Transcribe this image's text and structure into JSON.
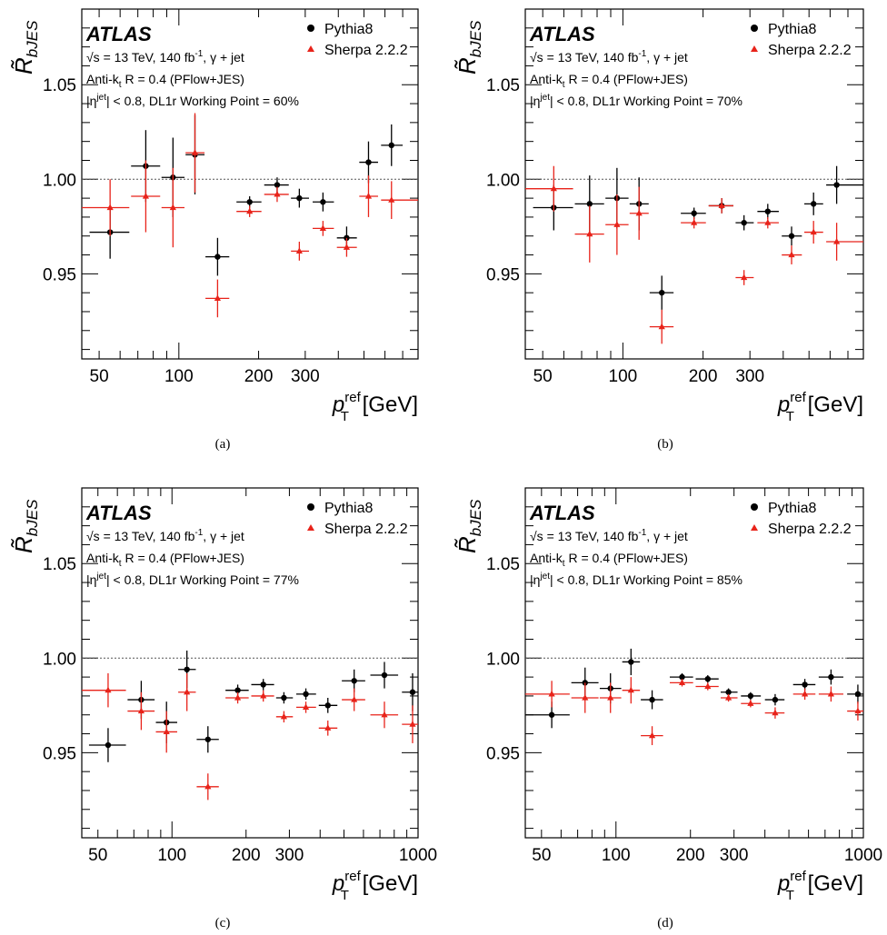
{
  "common": {
    "atlas_label": "ATLAS",
    "ann_sqrt": "√s = 13 TeV, 140 fb",
    "ann_sqrt_sup": "-1",
    "ann_sqrt_tail": ", γ + jet",
    "ann_jet_main": "Anti-k",
    "ann_jet_sub": "t",
    "ann_jet_tail": " R = 0.4 (PFlow+JES)",
    "ann_eta_pre": "|η",
    "ann_eta_sup": "jet",
    "ann_eta_tail_prefix": "| < 0.8, DL1r Working Point = ",
    "ylabel_main": "R̃",
    "ylabel_sub": "bJES",
    "xlabel_main": "p",
    "xlabel_sup": "ref",
    "xlabel_sub": "T",
    "xlabel_unit": " [GeV]",
    "legend": [
      "Pythia8",
      "Sherpa 2.2.2"
    ]
  },
  "colors": {
    "pythia": "#000000",
    "sherpa": "#e8231a",
    "reference_line": "#555555"
  },
  "chart_data": [
    {
      "type": "scatter",
      "caption": "(a)",
      "working_point": "60%",
      "x_scale": "log",
      "xlim": [
        43,
        800
      ],
      "ylim": [
        0.905,
        1.09
      ],
      "x_ticks": [
        50,
        100,
        200,
        300
      ],
      "y_ticks": [
        0.95,
        1.0,
        1.05
      ],
      "y_tick_labels": [
        "0.95",
        "1.00",
        "1.05"
      ],
      "reference_line": 1.0,
      "series": [
        {
          "name": "Pythia8",
          "points": [
            {
              "x": 55,
              "xlo": 46,
              "xhi": 65,
              "y": 0.972,
              "err": 0.014
            },
            {
              "x": 75,
              "xlo": 66,
              "xhi": 85,
              "y": 1.007,
              "err": 0.019
            },
            {
              "x": 95,
              "xlo": 86,
              "xhi": 105,
              "y": 1.001,
              "err": 0.021
            },
            {
              "x": 115,
              "xlo": 106,
              "xhi": 125,
              "y": 1.013,
              "err": 0.021
            },
            {
              "x": 140,
              "xlo": 126,
              "xhi": 155,
              "y": 0.959,
              "err": 0.01
            },
            {
              "x": 185,
              "xlo": 165,
              "xhi": 205,
              "y": 0.988,
              "err": 0.003
            },
            {
              "x": 235,
              "xlo": 210,
              "xhi": 260,
              "y": 0.997,
              "err": 0.004
            },
            {
              "x": 285,
              "xlo": 265,
              "xhi": 310,
              "y": 0.99,
              "err": 0.005
            },
            {
              "x": 350,
              "xlo": 320,
              "xhi": 385,
              "y": 0.988,
              "err": 0.005
            },
            {
              "x": 430,
              "xlo": 395,
              "xhi": 470,
              "y": 0.969,
              "err": 0.006
            },
            {
              "x": 520,
              "xlo": 480,
              "xhi": 565,
              "y": 1.009,
              "err": 0.011
            },
            {
              "x": 635,
              "xlo": 580,
              "xhi": 700,
              "y": 1.018,
              "err": 0.011
            }
          ]
        },
        {
          "name": "Sherpa 2.2.2",
          "points": [
            {
              "x": 55,
              "xlo": 43,
              "xhi": 65,
              "y": 0.985,
              "err": 0.015
            },
            {
              "x": 75,
              "xlo": 66,
              "xhi": 85,
              "y": 0.991,
              "err": 0.019
            },
            {
              "x": 95,
              "xlo": 86,
              "xhi": 105,
              "y": 0.985,
              "err": 0.021
            },
            {
              "x": 115,
              "xlo": 106,
              "xhi": 125,
              "y": 1.014,
              "err": 0.021
            },
            {
              "x": 140,
              "xlo": 126,
              "xhi": 155,
              "y": 0.937,
              "err": 0.01
            },
            {
              "x": 185,
              "xlo": 165,
              "xhi": 205,
              "y": 0.983,
              "err": 0.003
            },
            {
              "x": 235,
              "xlo": 210,
              "xhi": 260,
              "y": 0.992,
              "err": 0.004
            },
            {
              "x": 285,
              "xlo": 265,
              "xhi": 310,
              "y": 0.962,
              "err": 0.005
            },
            {
              "x": 350,
              "xlo": 320,
              "xhi": 385,
              "y": 0.974,
              "err": 0.004
            },
            {
              "x": 430,
              "xlo": 395,
              "xhi": 470,
              "y": 0.964,
              "err": 0.005
            },
            {
              "x": 520,
              "xlo": 480,
              "xhi": 565,
              "y": 0.991,
              "err": 0.011
            },
            {
              "x": 635,
              "xlo": 580,
              "xhi": 800,
              "y": 0.989,
              "err": 0.01
            }
          ]
        }
      ]
    },
    {
      "type": "scatter",
      "caption": "(b)",
      "working_point": "70%",
      "x_scale": "log",
      "xlim": [
        43,
        800
      ],
      "ylim": [
        0.905,
        1.09
      ],
      "x_ticks": [
        50,
        100,
        200,
        300
      ],
      "y_ticks": [
        0.95,
        1.0,
        1.05
      ],
      "y_tick_labels": [
        "0.95",
        "1.00",
        "1.05"
      ],
      "reference_line": 1.0,
      "series": [
        {
          "name": "Pythia8",
          "points": [
            {
              "x": 55,
              "xlo": 46,
              "xhi": 65,
              "y": 0.985,
              "err": 0.012
            },
            {
              "x": 75,
              "xlo": 66,
              "xhi": 85,
              "y": 0.987,
              "err": 0.015
            },
            {
              "x": 95,
              "xlo": 86,
              "xhi": 105,
              "y": 0.99,
              "err": 0.016
            },
            {
              "x": 115,
              "xlo": 106,
              "xhi": 125,
              "y": 0.987,
              "err": 0.014
            },
            {
              "x": 140,
              "xlo": 126,
              "xhi": 155,
              "y": 0.94,
              "err": 0.009
            },
            {
              "x": 185,
              "xlo": 165,
              "xhi": 205,
              "y": 0.982,
              "err": 0.003
            },
            {
              "x": 235,
              "xlo": 210,
              "xhi": 260,
              "y": 0.986,
              "err": 0.004
            },
            {
              "x": 285,
              "xlo": 265,
              "xhi": 310,
              "y": 0.977,
              "err": 0.004
            },
            {
              "x": 350,
              "xlo": 320,
              "xhi": 385,
              "y": 0.983,
              "err": 0.004
            },
            {
              "x": 430,
              "xlo": 395,
              "xhi": 470,
              "y": 0.97,
              "err": 0.005
            },
            {
              "x": 520,
              "xlo": 480,
              "xhi": 565,
              "y": 0.987,
              "err": 0.006
            },
            {
              "x": 635,
              "xlo": 580,
              "xhi": 800,
              "y": 0.997,
              "err": 0.01
            }
          ]
        },
        {
          "name": "Sherpa 2.2.2",
          "points": [
            {
              "x": 55,
              "xlo": 43,
              "xhi": 65,
              "y": 0.995,
              "err": 0.012
            },
            {
              "x": 75,
              "xlo": 66,
              "xhi": 85,
              "y": 0.971,
              "err": 0.015
            },
            {
              "x": 95,
              "xlo": 86,
              "xhi": 105,
              "y": 0.976,
              "err": 0.016
            },
            {
              "x": 115,
              "xlo": 106,
              "xhi": 125,
              "y": 0.982,
              "err": 0.014
            },
            {
              "x": 140,
              "xlo": 126,
              "xhi": 155,
              "y": 0.922,
              "err": 0.009
            },
            {
              "x": 185,
              "xlo": 165,
              "xhi": 205,
              "y": 0.977,
              "err": 0.003
            },
            {
              "x": 235,
              "xlo": 210,
              "xhi": 260,
              "y": 0.986,
              "err": 0.004
            },
            {
              "x": 285,
              "xlo": 265,
              "xhi": 310,
              "y": 0.948,
              "err": 0.004
            },
            {
              "x": 350,
              "xlo": 320,
              "xhi": 385,
              "y": 0.977,
              "err": 0.003
            },
            {
              "x": 430,
              "xlo": 395,
              "xhi": 470,
              "y": 0.96,
              "err": 0.005
            },
            {
              "x": 520,
              "xlo": 480,
              "xhi": 565,
              "y": 0.972,
              "err": 0.006
            },
            {
              "x": 635,
              "xlo": 580,
              "xhi": 800,
              "y": 0.967,
              "err": 0.01
            }
          ]
        }
      ]
    },
    {
      "type": "scatter",
      "caption": "(c)",
      "working_point": "77%",
      "x_scale": "log",
      "xlim": [
        43,
        1000
      ],
      "ylim": [
        0.905,
        1.09
      ],
      "x_ticks": [
        50,
        100,
        200,
        300,
        1000
      ],
      "y_ticks": [
        0.95,
        1.0,
        1.05
      ],
      "y_tick_labels": [
        "0.95",
        "1.00",
        "1.05"
      ],
      "reference_line": 1.0,
      "series": [
        {
          "name": "Pythia8",
          "points": [
            {
              "x": 55,
              "xlo": 46,
              "xhi": 65,
              "y": 0.954,
              "err": 0.009
            },
            {
              "x": 75,
              "xlo": 66,
              "xhi": 85,
              "y": 0.978,
              "err": 0.01
            },
            {
              "x": 95,
              "xlo": 86,
              "xhi": 105,
              "y": 0.966,
              "err": 0.011
            },
            {
              "x": 115,
              "xlo": 106,
              "xhi": 125,
              "y": 0.994,
              "err": 0.01
            },
            {
              "x": 140,
              "xlo": 126,
              "xhi": 155,
              "y": 0.957,
              "err": 0.007
            },
            {
              "x": 185,
              "xlo": 165,
              "xhi": 205,
              "y": 0.983,
              "err": 0.003
            },
            {
              "x": 235,
              "xlo": 210,
              "xhi": 260,
              "y": 0.986,
              "err": 0.003
            },
            {
              "x": 285,
              "xlo": 265,
              "xhi": 310,
              "y": 0.979,
              "err": 0.003
            },
            {
              "x": 350,
              "xlo": 320,
              "xhi": 385,
              "y": 0.981,
              "err": 0.003
            },
            {
              "x": 430,
              "xlo": 395,
              "xhi": 470,
              "y": 0.975,
              "err": 0.004
            },
            {
              "x": 550,
              "xlo": 490,
              "xhi": 610,
              "y": 0.988,
              "err": 0.006
            },
            {
              "x": 730,
              "xlo": 640,
              "xhi": 830,
              "y": 0.991,
              "err": 0.007
            },
            {
              "x": 950,
              "xlo": 860,
              "xhi": 1000,
              "y": 0.982,
              "err": 0.01
            }
          ]
        },
        {
          "name": "Sherpa 2.2.2",
          "points": [
            {
              "x": 55,
              "xlo": 43,
              "xhi": 65,
              "y": 0.983,
              "err": 0.009
            },
            {
              "x": 75,
              "xlo": 66,
              "xhi": 85,
              "y": 0.972,
              "err": 0.01
            },
            {
              "x": 95,
              "xlo": 86,
              "xhi": 105,
              "y": 0.961,
              "err": 0.011
            },
            {
              "x": 115,
              "xlo": 106,
              "xhi": 125,
              "y": 0.982,
              "err": 0.01
            },
            {
              "x": 140,
              "xlo": 126,
              "xhi": 155,
              "y": 0.932,
              "err": 0.007
            },
            {
              "x": 185,
              "xlo": 165,
              "xhi": 205,
              "y": 0.979,
              "err": 0.003
            },
            {
              "x": 235,
              "xlo": 210,
              "xhi": 260,
              "y": 0.98,
              "err": 0.003
            },
            {
              "x": 285,
              "xlo": 265,
              "xhi": 310,
              "y": 0.969,
              "err": 0.003
            },
            {
              "x": 350,
              "xlo": 320,
              "xhi": 385,
              "y": 0.974,
              "err": 0.003
            },
            {
              "x": 430,
              "xlo": 395,
              "xhi": 470,
              "y": 0.963,
              "err": 0.004
            },
            {
              "x": 550,
              "xlo": 490,
              "xhi": 610,
              "y": 0.978,
              "err": 0.006
            },
            {
              "x": 730,
              "xlo": 640,
              "xhi": 830,
              "y": 0.97,
              "err": 0.007
            },
            {
              "x": 950,
              "xlo": 860,
              "xhi": 1000,
              "y": 0.965,
              "err": 0.01
            }
          ]
        }
      ]
    },
    {
      "type": "scatter",
      "caption": "(d)",
      "working_point": "85%",
      "x_scale": "log",
      "xlim": [
        43,
        1000
      ],
      "ylim": [
        0.905,
        1.09
      ],
      "x_ticks": [
        50,
        100,
        200,
        300,
        1000
      ],
      "y_ticks": [
        0.95,
        1.0,
        1.05
      ],
      "y_tick_labels": [
        "0.95",
        "1.00",
        "1.05"
      ],
      "reference_line": 1.0,
      "series": [
        {
          "name": "Pythia8",
          "points": [
            {
              "x": 55,
              "xlo": 43,
              "xhi": 65,
              "y": 0.97,
              "err": 0.007
            },
            {
              "x": 75,
              "xlo": 66,
              "xhi": 85,
              "y": 0.987,
              "err": 0.008
            },
            {
              "x": 95,
              "xlo": 86,
              "xhi": 105,
              "y": 0.984,
              "err": 0.008
            },
            {
              "x": 115,
              "xlo": 106,
              "xhi": 125,
              "y": 0.998,
              "err": 0.007
            },
            {
              "x": 140,
              "xlo": 126,
              "xhi": 155,
              "y": 0.978,
              "err": 0.005
            },
            {
              "x": 185,
              "xlo": 165,
              "xhi": 205,
              "y": 0.99,
              "err": 0.002
            },
            {
              "x": 235,
              "xlo": 210,
              "xhi": 260,
              "y": 0.989,
              "err": 0.002
            },
            {
              "x": 285,
              "xlo": 265,
              "xhi": 310,
              "y": 0.982,
              "err": 0.002
            },
            {
              "x": 350,
              "xlo": 320,
              "xhi": 385,
              "y": 0.98,
              "err": 0.002
            },
            {
              "x": 440,
              "xlo": 400,
              "xhi": 480,
              "y": 0.978,
              "err": 0.003
            },
            {
              "x": 580,
              "xlo": 520,
              "xhi": 640,
              "y": 0.986,
              "err": 0.003
            },
            {
              "x": 740,
              "xlo": 660,
              "xhi": 830,
              "y": 0.99,
              "err": 0.004
            },
            {
              "x": 950,
              "xlo": 860,
              "xhi": 1000,
              "y": 0.981,
              "err": 0.005
            }
          ]
        },
        {
          "name": "Sherpa 2.2.2",
          "points": [
            {
              "x": 55,
              "xlo": 43,
              "xhi": 65,
              "y": 0.981,
              "err": 0.007
            },
            {
              "x": 75,
              "xlo": 66,
              "xhi": 85,
              "y": 0.979,
              "err": 0.008
            },
            {
              "x": 95,
              "xlo": 86,
              "xhi": 105,
              "y": 0.979,
              "err": 0.008
            },
            {
              "x": 115,
              "xlo": 106,
              "xhi": 125,
              "y": 0.983,
              "err": 0.007
            },
            {
              "x": 140,
              "xlo": 126,
              "xhi": 155,
              "y": 0.959,
              "err": 0.005
            },
            {
              "x": 185,
              "xlo": 165,
              "xhi": 205,
              "y": 0.987,
              "err": 0.002
            },
            {
              "x": 235,
              "xlo": 210,
              "xhi": 260,
              "y": 0.985,
              "err": 0.002
            },
            {
              "x": 285,
              "xlo": 265,
              "xhi": 310,
              "y": 0.979,
              "err": 0.002
            },
            {
              "x": 350,
              "xlo": 320,
              "xhi": 385,
              "y": 0.976,
              "err": 0.002
            },
            {
              "x": 440,
              "xlo": 400,
              "xhi": 480,
              "y": 0.971,
              "err": 0.003
            },
            {
              "x": 580,
              "xlo": 520,
              "xhi": 640,
              "y": 0.981,
              "err": 0.003
            },
            {
              "x": 740,
              "xlo": 660,
              "xhi": 830,
              "y": 0.981,
              "err": 0.004
            },
            {
              "x": 950,
              "xlo": 860,
              "xhi": 1000,
              "y": 0.972,
              "err": 0.005
            }
          ]
        }
      ]
    }
  ]
}
